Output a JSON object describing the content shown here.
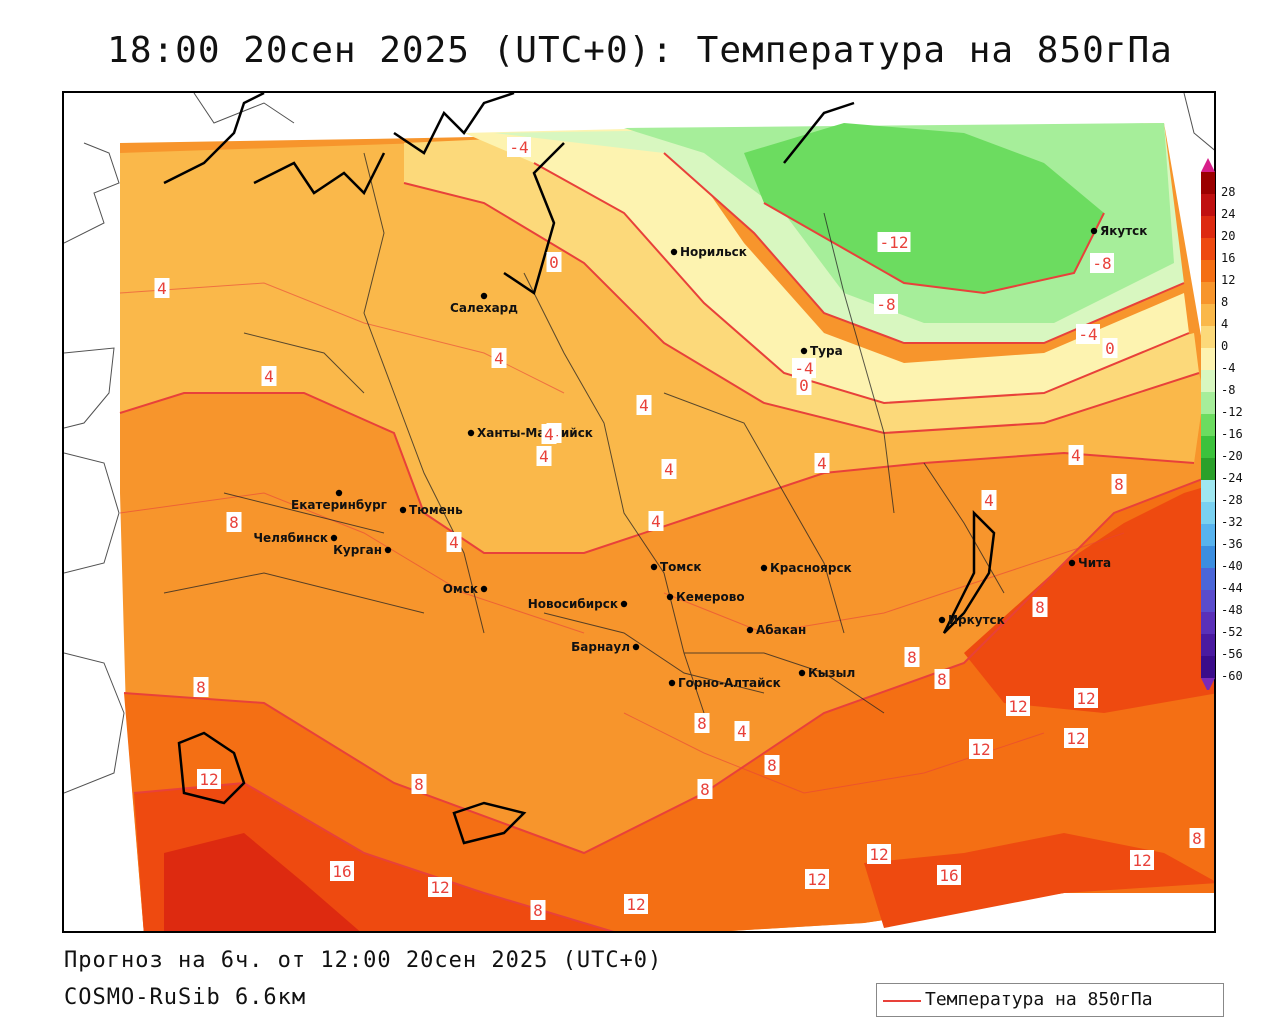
{
  "title": "18:00 20сен 2025 (UTC+0): Температура на 850гПа",
  "footer": {
    "forecast": "Прогноз на 6ч. от 12:00 20сен 2025 (UTC+0)",
    "model": "COSMO-RuSib 6.6км"
  },
  "legend": {
    "label": "Температура на 850гПа",
    "line_color": "#e8413a"
  },
  "colorbar": {
    "labels": [
      "28",
      "24",
      "20",
      "16",
      "12",
      "8",
      "4",
      "0",
      "-4",
      "-8",
      "-12",
      "-16",
      "-20",
      "-24",
      "-28",
      "-32",
      "-36",
      "-40",
      "-44",
      "-48",
      "-52",
      "-56",
      "-60"
    ],
    "colors": [
      "#9b0000",
      "#c01010",
      "#dd2a10",
      "#ee4a10",
      "#f46f14",
      "#f7952c",
      "#fab84a",
      "#fcd97a",
      "#fdf3b0",
      "#d8f7c0",
      "#a6ee9a",
      "#6cdc60",
      "#3cc23c",
      "#2aa02a",
      "#9fe7f0",
      "#7ad1f0",
      "#58b3ee",
      "#3c8ee0",
      "#4b66d8",
      "#5a4ccc",
      "#5a30b8",
      "#4a1aa0",
      "#3a0c8a"
    ],
    "top_arrow_color": "#d81f8a",
    "bottom_arrow_color": "#7a2ab8"
  },
  "cities": [
    {
      "name": "Норильск"
    },
    {
      "name": "Якутск"
    },
    {
      "name": "Салехард"
    },
    {
      "name": "Тура"
    },
    {
      "name": "Ханты-Мансийск"
    },
    {
      "name": "Екатеринбург"
    },
    {
      "name": "Тюмень"
    },
    {
      "name": "Челябинск"
    },
    {
      "name": "Курган"
    },
    {
      "name": "Омск"
    },
    {
      "name": "Новосибирск"
    },
    {
      "name": "Томск"
    },
    {
      "name": "Кемерово"
    },
    {
      "name": "Красноярск"
    },
    {
      "name": "Барнаул"
    },
    {
      "name": "Абакан"
    },
    {
      "name": "Горно-Алтайск"
    },
    {
      "name": "Кызыл"
    },
    {
      "name": "Иркутск"
    },
    {
      "name": "Чита"
    }
  ],
  "isotherm_labels": [
    "-4",
    "-12",
    "-8",
    "-8",
    "-4",
    "0",
    "-4",
    "0",
    "0",
    "4",
    "4",
    "4",
    "4",
    "4",
    "4",
    "4",
    "4",
    "4",
    "4",
    "4",
    "4",
    "4",
    "4",
    "8",
    "8",
    "8",
    "8",
    "8",
    "8",
    "8",
    "8",
    "8",
    "8",
    "8",
    "8",
    "12",
    "12",
    "12",
    "12",
    "12",
    "12",
    "12",
    "12",
    "12",
    "12",
    "16",
    "16"
  ]
}
